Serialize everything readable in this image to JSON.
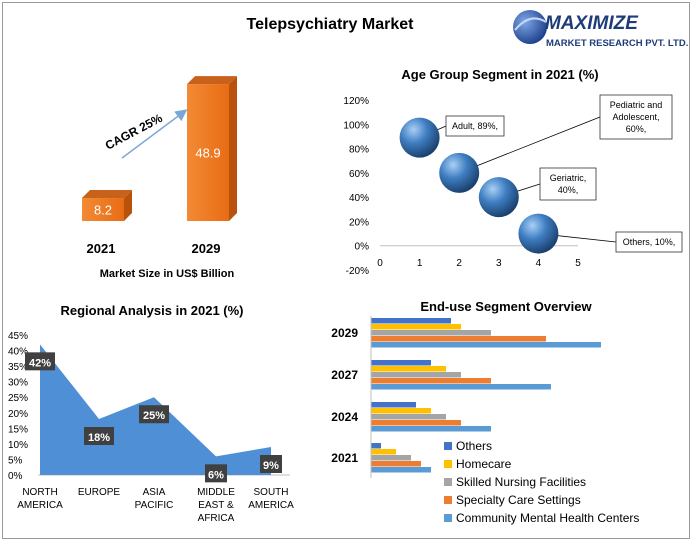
{
  "page": {
    "title": "Telepsychiatry Market"
  },
  "logo": {
    "name": "MAXIMIZE",
    "sub": "MARKET RESEARCH PVT. LTD."
  },
  "colors": {
    "orange": "#f07a1e",
    "orange_dark": "#b8520c",
    "orange_top": "#c8611a",
    "area": "#4f8fd6",
    "label_bg": "#404040",
    "bubble": "#3f7ec2",
    "others": "#4472c4",
    "homecare": "#ffc000",
    "nursing": "#a5a5a5",
    "specialty": "#ed7d31",
    "community": "#5b9bd5"
  },
  "chart_data": [
    {
      "id": "market-size",
      "type": "bar",
      "title": "",
      "xlabel": "Market Size in US$ Billion",
      "categories": [
        "2021",
        "2029"
      ],
      "values": [
        8.2,
        48.9
      ],
      "annotation": "CAGR 25%"
    },
    {
      "id": "age-group",
      "type": "scatter",
      "title": "Age Group Segment in 2021 (%)",
      "xlim": [
        0,
        5
      ],
      "ylim": [
        -20,
        120
      ],
      "xticks": [
        "0",
        "1",
        "2",
        "3",
        "4",
        "5"
      ],
      "yticks": [
        "120%",
        "100%",
        "80%",
        "60%",
        "40%",
        "20%",
        "0%",
        "-20%"
      ],
      "points": [
        {
          "x": 1,
          "y": 89,
          "label": "Adult, 89%,"
        },
        {
          "x": 2,
          "y": 60,
          "label": "Pediatric and Adolescent, 60%,"
        },
        {
          "x": 3,
          "y": 40,
          "label": "Geriatric, 40%,"
        },
        {
          "x": 4,
          "y": 10,
          "label": "Others, 10%,"
        }
      ]
    },
    {
      "id": "regional",
      "type": "area",
      "title": "Regional Analysis in 2021 (%)",
      "ylim": [
        0,
        45
      ],
      "yticks": [
        "45%",
        "40%",
        "35%",
        "30%",
        "25%",
        "20%",
        "15%",
        "10%",
        "5%",
        "0%"
      ],
      "categories": [
        "NORTH AMERICA",
        "EUROPE",
        "ASIA PACIFIC",
        "MIDDLE EAST & AFRICA",
        "SOUTH AMERICA"
      ],
      "values": [
        42,
        18,
        25,
        6,
        9
      ],
      "labels": [
        "42%",
        "18%",
        "25%",
        "6%",
        "9%"
      ]
    },
    {
      "id": "end-use",
      "type": "bar",
      "orientation": "horizontal",
      "title": "End-use Segment Overview",
      "categories": [
        "2029",
        "2027",
        "2024",
        "2021"
      ],
      "legend_position": "bottom-right",
      "series": [
        {
          "name": "Others",
          "values": [
            1.6,
            1.2,
            0.9,
            0.2
          ]
        },
        {
          "name": "Homecare",
          "values": [
            1.8,
            1.5,
            1.2,
            0.5
          ]
        },
        {
          "name": "Skilled Nursing Facilities",
          "values": [
            2.4,
            1.8,
            1.5,
            0.8
          ]
        },
        {
          "name": "Specialty Care Settings",
          "values": [
            3.5,
            2.4,
            1.8,
            1.0
          ]
        },
        {
          "name": "Community Mental Health Centers",
          "values": [
            4.6,
            3.6,
            2.4,
            1.2
          ]
        }
      ]
    }
  ]
}
